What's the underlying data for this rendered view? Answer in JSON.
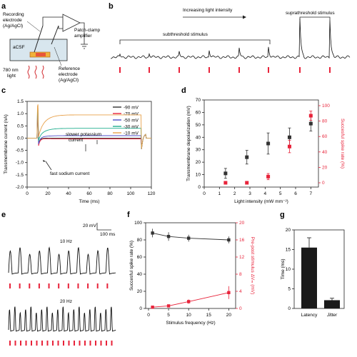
{
  "panels": {
    "a": {
      "letter": "a",
      "recording_electrode": [
        "Recording",
        "electrode",
        "(Ag/AgCl)"
      ],
      "amplifier": [
        "Patch-clamp",
        "amplifier"
      ],
      "acsf": "aCSF",
      "reference_electrode": [
        "Reference",
        "electrode",
        "(Ag/AgCl)"
      ],
      "light": [
        "780 nm",
        "light"
      ]
    },
    "b": {
      "letter": "b",
      "increasing": "Increasing light intensity",
      "subthreshold": "subthreshold stimulus",
      "suprathreshold": "suprathreshold stimulus"
    },
    "c": {
      "letter": "c",
      "annotation_potassium": [
        "slower potassium",
        "current"
      ],
      "annotation_sodium": "fast sodium current"
    },
    "d": {
      "letter": "d"
    },
    "e": {
      "letter": "e",
      "scale_mv": "20 mV",
      "scale_ms": "100 ms",
      "label_10hz": "10 Hz",
      "label_20hz": "20 Hz"
    },
    "f": {
      "letter": "f"
    },
    "g": {
      "letter": "g"
    }
  },
  "chart_data": [
    {
      "id": "c",
      "type": "line",
      "xlabel": "Time (ms)",
      "ylabel": "Transmembrane current (nA)",
      "xlim": [
        0,
        120
      ],
      "ylim": [
        -2,
        1.5
      ],
      "xticks": [
        0,
        20,
        40,
        60,
        80,
        100,
        120
      ],
      "yticks": [
        -2.0,
        -1.5,
        -1.0,
        -0.5,
        0.0,
        0.5,
        1.0,
        1.5
      ],
      "series": [
        {
          "name": "-90 mV",
          "color": "#333333"
        },
        {
          "name": "-70 mV",
          "color": "#e8233a"
        },
        {
          "name": "-50 mV",
          "color": "#4d4fc9"
        },
        {
          "name": "-30 mV",
          "color": "#1fae8e"
        },
        {
          "name": "-10 mV",
          "color": "#e8a14a"
        }
      ]
    },
    {
      "id": "d",
      "type": "scatter",
      "xlabel": "Light intensity (mW mm⁻²)",
      "ylabel": "Transmembrane depolarization (mV)",
      "ylabel2": "Succesful spike rate (%)",
      "xlim": [
        0,
        7.5
      ],
      "ylim": [
        0,
        70
      ],
      "ylim2": [
        0,
        100
      ],
      "xticks": [
        0,
        1,
        2,
        3,
        4,
        5,
        6,
        7
      ],
      "yticks": [
        0,
        10,
        20,
        30,
        40,
        50,
        60,
        70
      ],
      "yticks2": [
        0,
        20,
        40,
        60,
        80,
        100
      ],
      "series": [
        {
          "axis": "left",
          "color": "#333333",
          "x": [
            1.4,
            2.8,
            4.2,
            5.6,
            7.0
          ],
          "y": [
            11,
            24,
            35,
            40,
            51
          ],
          "err": [
            4,
            5.5,
            8.5,
            7.5,
            6
          ]
        },
        {
          "axis": "right",
          "color": "#e8233a",
          "x": [
            1.4,
            2.8,
            4.2,
            5.6,
            7.0
          ],
          "y": [
            0,
            0,
            8,
            47,
            87
          ],
          "err": [
            0,
            0,
            4,
            8,
            6
          ]
        }
      ]
    },
    {
      "id": "f",
      "type": "line",
      "xlabel": "Stimulus frequency (Hz)",
      "ylabel": "Succesful spike rate (%)",
      "ylabel2": "Pre-post stimulus ΔVₘ (mV)",
      "xlim": [
        0,
        21
      ],
      "ylim": [
        0,
        100
      ],
      "ylim2": [
        0,
        20
      ],
      "xticks": [
        0,
        5,
        10,
        15,
        20
      ],
      "yticks": [
        0,
        20,
        40,
        60,
        80,
        100
      ],
      "yticks2": [
        0,
        4,
        8,
        12,
        16,
        20
      ],
      "series": [
        {
          "axis": "left",
          "color": "#333333",
          "x": [
            1,
            5,
            10,
            20
          ],
          "y": [
            88,
            84,
            82,
            80
          ],
          "err": [
            5,
            5,
            4,
            4
          ]
        },
        {
          "axis": "right",
          "color": "#e8233a",
          "x": [
            1,
            5,
            10,
            20
          ],
          "y": [
            0.3,
            0.6,
            1.6,
            3.7
          ],
          "err": [
            0.2,
            0.3,
            0.5,
            1.5
          ]
        }
      ]
    },
    {
      "id": "g",
      "type": "bar",
      "ylabel": "Time (ms)",
      "categories": [
        "Latency",
        "Jitter"
      ],
      "values": [
        15.5,
        2.1
      ],
      "err": [
        2.5,
        0.5
      ],
      "ylim": [
        0,
        20
      ],
      "yticks": [
        0,
        5,
        10,
        15,
        20
      ]
    }
  ]
}
